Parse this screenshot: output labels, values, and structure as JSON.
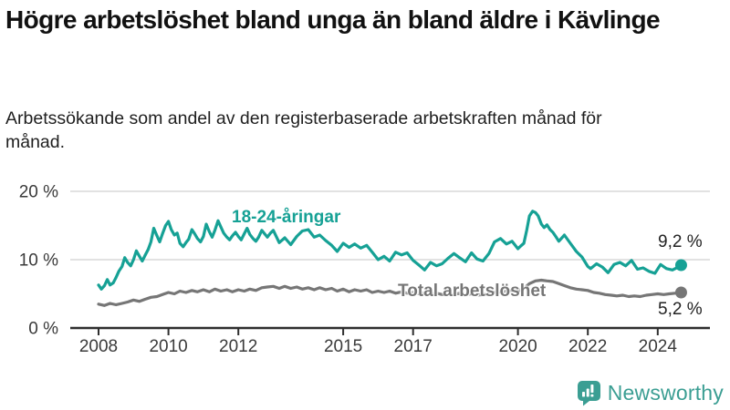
{
  "header": {
    "title": "Högre arbetslöshet bland unga än bland äldre i Kävlinge",
    "subtitle": "Arbetssökande som andel av den registerbaserade arbetskraften månad för månad."
  },
  "chart_data": {
    "type": "line",
    "title": "Högre arbetslöshet bland unga än bland äldre i Kävlinge",
    "xlabel": "",
    "ylabel": "Arbetssökande som andel av den registerbaserade arbetskraften",
    "ylim": [
      0,
      20
    ],
    "grid": "horizontal-light",
    "legend_position": "inline-labels",
    "yticks": [
      {
        "v": 0,
        "label": "0 %"
      },
      {
        "v": 10,
        "label": "10 %"
      },
      {
        "v": 20,
        "label": "20 %"
      }
    ],
    "xticks": [
      2008,
      2010,
      2012,
      2015,
      2017,
      2020,
      2022,
      2024
    ],
    "series": [
      {
        "name": "18-24-åringar",
        "color": "#16a195",
        "end_label": "9,2 %",
        "end_value": 9.2,
        "points": [
          [
            2008.0,
            6.3
          ],
          [
            2008.08,
            5.7
          ],
          [
            2008.17,
            6.2
          ],
          [
            2008.25,
            7.1
          ],
          [
            2008.33,
            6.3
          ],
          [
            2008.42,
            6.6
          ],
          [
            2008.5,
            7.4
          ],
          [
            2008.58,
            8.3
          ],
          [
            2008.67,
            9.0
          ],
          [
            2008.75,
            10.3
          ],
          [
            2008.83,
            9.6
          ],
          [
            2008.92,
            9.1
          ],
          [
            2009.0,
            10.0
          ],
          [
            2009.08,
            11.3
          ],
          [
            2009.17,
            10.5
          ],
          [
            2009.25,
            9.8
          ],
          [
            2009.33,
            10.6
          ],
          [
            2009.42,
            11.5
          ],
          [
            2009.5,
            12.6
          ],
          [
            2009.58,
            14.6
          ],
          [
            2009.67,
            13.5
          ],
          [
            2009.75,
            12.6
          ],
          [
            2009.83,
            13.8
          ],
          [
            2009.92,
            15.0
          ],
          [
            2010.0,
            15.6
          ],
          [
            2010.08,
            14.4
          ],
          [
            2010.17,
            13.6
          ],
          [
            2010.25,
            13.9
          ],
          [
            2010.33,
            12.4
          ],
          [
            2010.42,
            11.9
          ],
          [
            2010.5,
            12.5
          ],
          [
            2010.58,
            13.0
          ],
          [
            2010.67,
            14.4
          ],
          [
            2010.75,
            13.8
          ],
          [
            2010.83,
            13.1
          ],
          [
            2010.92,
            12.6
          ],
          [
            2011.0,
            13.4
          ],
          [
            2011.08,
            15.2
          ],
          [
            2011.17,
            14.1
          ],
          [
            2011.25,
            13.3
          ],
          [
            2011.33,
            14.3
          ],
          [
            2011.42,
            15.7
          ],
          [
            2011.5,
            14.8
          ],
          [
            2011.58,
            13.9
          ],
          [
            2011.67,
            13.3
          ],
          [
            2011.75,
            12.9
          ],
          [
            2011.83,
            13.5
          ],
          [
            2011.92,
            14.0
          ],
          [
            2012.0,
            13.4
          ],
          [
            2012.08,
            12.9
          ],
          [
            2012.17,
            13.8
          ],
          [
            2012.25,
            14.6
          ],
          [
            2012.33,
            13.7
          ],
          [
            2012.42,
            13.1
          ],
          [
            2012.5,
            12.7
          ],
          [
            2012.58,
            13.3
          ],
          [
            2012.67,
            14.3
          ],
          [
            2012.75,
            13.8
          ],
          [
            2012.83,
            13.3
          ],
          [
            2012.92,
            13.9
          ],
          [
            2013.0,
            14.3
          ],
          [
            2013.17,
            12.5
          ],
          [
            2013.33,
            13.2
          ],
          [
            2013.5,
            12.2
          ],
          [
            2013.67,
            13.4
          ],
          [
            2013.83,
            14.2
          ],
          [
            2014.0,
            14.4
          ],
          [
            2014.17,
            13.3
          ],
          [
            2014.33,
            13.6
          ],
          [
            2014.5,
            12.8
          ],
          [
            2014.67,
            12.1
          ],
          [
            2014.83,
            11.2
          ],
          [
            2015.0,
            12.4
          ],
          [
            2015.17,
            11.8
          ],
          [
            2015.33,
            12.3
          ],
          [
            2015.5,
            11.7
          ],
          [
            2015.67,
            12.1
          ],
          [
            2015.83,
            11.1
          ],
          [
            2016.0,
            10.0
          ],
          [
            2016.17,
            10.5
          ],
          [
            2016.33,
            9.8
          ],
          [
            2016.5,
            11.1
          ],
          [
            2016.67,
            10.7
          ],
          [
            2016.83,
            11.0
          ],
          [
            2017.0,
            9.9
          ],
          [
            2017.17,
            9.2
          ],
          [
            2017.33,
            8.5
          ],
          [
            2017.5,
            9.6
          ],
          [
            2017.67,
            9.1
          ],
          [
            2017.83,
            9.4
          ],
          [
            2018.0,
            10.2
          ],
          [
            2018.17,
            10.9
          ],
          [
            2018.33,
            10.3
          ],
          [
            2018.5,
            9.7
          ],
          [
            2018.67,
            11.0
          ],
          [
            2018.83,
            10.1
          ],
          [
            2019.0,
            9.8
          ],
          [
            2019.17,
            10.9
          ],
          [
            2019.33,
            12.6
          ],
          [
            2019.5,
            13.1
          ],
          [
            2019.67,
            12.3
          ],
          [
            2019.83,
            12.7
          ],
          [
            2020.0,
            11.6
          ],
          [
            2020.08,
            12.0
          ],
          [
            2020.17,
            12.4
          ],
          [
            2020.25,
            14.3
          ],
          [
            2020.33,
            16.4
          ],
          [
            2020.42,
            17.1
          ],
          [
            2020.5,
            16.9
          ],
          [
            2020.58,
            16.4
          ],
          [
            2020.67,
            15.2
          ],
          [
            2020.75,
            14.7
          ],
          [
            2020.83,
            15.1
          ],
          [
            2020.92,
            14.4
          ],
          [
            2021.0,
            14.0
          ],
          [
            2021.08,
            13.4
          ],
          [
            2021.17,
            12.7
          ],
          [
            2021.33,
            13.6
          ],
          [
            2021.5,
            12.4
          ],
          [
            2021.67,
            11.2
          ],
          [
            2021.83,
            10.4
          ],
          [
            2022.0,
            9.0
          ],
          [
            2022.08,
            8.7
          ],
          [
            2022.25,
            9.4
          ],
          [
            2022.42,
            8.9
          ],
          [
            2022.58,
            8.1
          ],
          [
            2022.75,
            9.3
          ],
          [
            2022.92,
            9.6
          ],
          [
            2023.08,
            9.1
          ],
          [
            2023.25,
            9.9
          ],
          [
            2023.42,
            8.6
          ],
          [
            2023.58,
            8.8
          ],
          [
            2023.75,
            8.3
          ],
          [
            2023.92,
            8.0
          ],
          [
            2024.08,
            9.3
          ],
          [
            2024.25,
            8.7
          ],
          [
            2024.42,
            8.5
          ],
          [
            2024.58,
            8.9
          ],
          [
            2024.67,
            9.2
          ]
        ]
      },
      {
        "name": "Total arbetslöshet",
        "color": "#767676",
        "end_label": "5,2 %",
        "end_value": 5.2,
        "points": [
          [
            2008.0,
            3.5
          ],
          [
            2008.17,
            3.3
          ],
          [
            2008.33,
            3.6
          ],
          [
            2008.5,
            3.4
          ],
          [
            2008.67,
            3.6
          ],
          [
            2008.83,
            3.8
          ],
          [
            2009.0,
            4.1
          ],
          [
            2009.17,
            3.9
          ],
          [
            2009.33,
            4.2
          ],
          [
            2009.5,
            4.5
          ],
          [
            2009.67,
            4.6
          ],
          [
            2009.83,
            4.9
          ],
          [
            2010.0,
            5.2
          ],
          [
            2010.17,
            5.0
          ],
          [
            2010.33,
            5.4
          ],
          [
            2010.5,
            5.2
          ],
          [
            2010.67,
            5.5
          ],
          [
            2010.83,
            5.3
          ],
          [
            2011.0,
            5.6
          ],
          [
            2011.17,
            5.3
          ],
          [
            2011.33,
            5.7
          ],
          [
            2011.5,
            5.4
          ],
          [
            2011.67,
            5.6
          ],
          [
            2011.83,
            5.3
          ],
          [
            2012.0,
            5.6
          ],
          [
            2012.17,
            5.4
          ],
          [
            2012.33,
            5.7
          ],
          [
            2012.5,
            5.5
          ],
          [
            2012.67,
            5.9
          ],
          [
            2012.83,
            6.0
          ],
          [
            2013.0,
            6.1
          ],
          [
            2013.17,
            5.8
          ],
          [
            2013.33,
            6.1
          ],
          [
            2013.5,
            5.8
          ],
          [
            2013.67,
            6.0
          ],
          [
            2013.83,
            5.7
          ],
          [
            2014.0,
            5.9
          ],
          [
            2014.17,
            5.6
          ],
          [
            2014.33,
            5.9
          ],
          [
            2014.5,
            5.6
          ],
          [
            2014.67,
            5.8
          ],
          [
            2014.83,
            5.4
          ],
          [
            2015.0,
            5.7
          ],
          [
            2015.17,
            5.3
          ],
          [
            2015.33,
            5.6
          ],
          [
            2015.5,
            5.4
          ],
          [
            2015.67,
            5.6
          ],
          [
            2015.83,
            5.2
          ],
          [
            2016.0,
            5.4
          ],
          [
            2016.17,
            5.2
          ],
          [
            2016.33,
            5.4
          ],
          [
            2016.5,
            5.1
          ],
          [
            2016.67,
            5.3
          ],
          [
            2016.83,
            5.1
          ],
          [
            2017.0,
            5.2
          ],
          [
            2017.17,
            5.0
          ],
          [
            2017.33,
            5.2
          ],
          [
            2017.5,
            5.0
          ],
          [
            2017.67,
            5.1
          ],
          [
            2017.83,
            4.9
          ],
          [
            2018.0,
            5.0
          ],
          [
            2018.17,
            4.9
          ],
          [
            2018.33,
            5.1
          ],
          [
            2018.5,
            4.8
          ],
          [
            2018.67,
            5.0
          ],
          [
            2018.83,
            4.8
          ],
          [
            2019.0,
            4.9
          ],
          [
            2019.17,
            5.0
          ],
          [
            2019.33,
            5.2
          ],
          [
            2019.5,
            5.3
          ],
          [
            2019.67,
            5.4
          ],
          [
            2019.83,
            5.5
          ],
          [
            2020.0,
            5.4
          ],
          [
            2020.17,
            5.8
          ],
          [
            2020.33,
            6.5
          ],
          [
            2020.5,
            6.9
          ],
          [
            2020.67,
            7.0
          ],
          [
            2020.83,
            6.9
          ],
          [
            2021.0,
            6.8
          ],
          [
            2021.17,
            6.5
          ],
          [
            2021.33,
            6.2
          ],
          [
            2021.5,
            5.9
          ],
          [
            2021.67,
            5.7
          ],
          [
            2021.83,
            5.6
          ],
          [
            2022.0,
            5.5
          ],
          [
            2022.17,
            5.2
          ],
          [
            2022.33,
            5.1
          ],
          [
            2022.5,
            4.9
          ],
          [
            2022.67,
            4.8
          ],
          [
            2022.83,
            4.7
          ],
          [
            2023.0,
            4.8
          ],
          [
            2023.17,
            4.6
          ],
          [
            2023.33,
            4.7
          ],
          [
            2023.5,
            4.6
          ],
          [
            2023.67,
            4.8
          ],
          [
            2023.83,
            4.9
          ],
          [
            2024.0,
            5.0
          ],
          [
            2024.17,
            4.9
          ],
          [
            2024.33,
            5.0
          ],
          [
            2024.5,
            5.1
          ],
          [
            2024.67,
            5.2
          ]
        ]
      }
    ]
  },
  "footer": {
    "brand": "Newsworthy",
    "logo_color": "#3b9e93"
  }
}
